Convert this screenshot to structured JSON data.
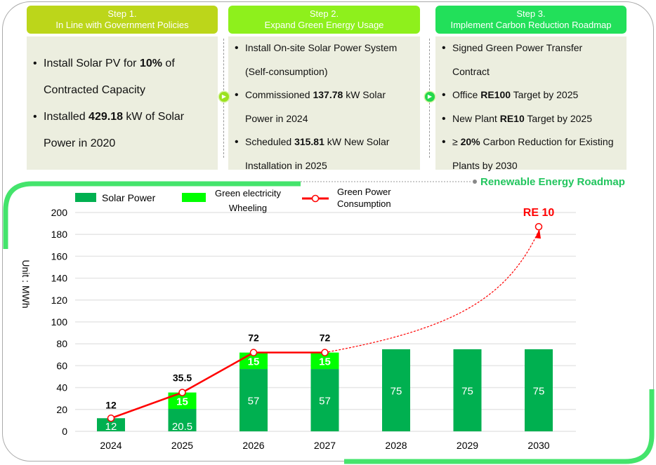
{
  "steps": [
    {
      "title": "Step 1.",
      "subtitle": "In Line with Government Policies",
      "color": "#bcd61a",
      "items": [
        [
          "Install Solar PV for ",
          "10%",
          " of Contracted Capacity"
        ],
        [
          "Installed ",
          "429.18",
          " kW of Solar Power in 2020"
        ]
      ]
    },
    {
      "title": "Step 2.",
      "subtitle": "Expand Green Energy Usage",
      "color": "#8ef01c",
      "items": [
        [
          "Install On-site Solar Power System (Self-consumption)",
          "",
          ""
        ],
        [
          "Commissioned ",
          "137.78",
          " kW Solar Power in 2024"
        ],
        [
          "Scheduled ",
          "315.81",
          " kW New Solar Installation in 2025"
        ]
      ]
    },
    {
      "title": "Step 3.",
      "subtitle": "Implement  Carbon Reduction Roadmap",
      "color": "#22e05a",
      "items": [
        [
          "Signed Green Power Transfer Contract",
          "",
          ""
        ],
        [
          "Office ",
          "RE100",
          " Target by 2025"
        ],
        [
          "New Plant ",
          "RE10",
          " Target by 2025"
        ],
        [
          "≥ ",
          "20%",
          " Carbon Reduction for Existing Plants by 2030"
        ]
      ]
    }
  ],
  "roadmap_title": "Renewable Energy Roadmap",
  "chart_data": {
    "type": "bar",
    "ylabel": "Unit : MWh",
    "ylim": [
      0,
      200
    ],
    "yticks": [
      0,
      20,
      40,
      60,
      80,
      100,
      120,
      140,
      160,
      180,
      200
    ],
    "grid": true,
    "legend_position": "top",
    "categories": [
      "2024",
      "2025",
      "2026",
      "2027",
      "2028",
      "2029",
      "2030"
    ],
    "series": [
      {
        "name": "Solar Power",
        "type": "bar",
        "stacked": true,
        "color": "#00b050",
        "values": [
          12,
          20.5,
          57,
          57,
          75,
          75,
          75
        ],
        "labels": [
          "12",
          "20.5",
          "57",
          "57",
          "75",
          "75",
          "75"
        ]
      },
      {
        "name": "Green electricity Wheeling",
        "type": "bar",
        "stacked": true,
        "color": "#00ff00",
        "values": [
          0,
          15,
          15,
          15,
          0,
          0,
          0
        ],
        "labels": [
          "",
          "15",
          "15",
          "15",
          "",
          "",
          ""
        ]
      },
      {
        "name": "Green Power Consumption",
        "type": "line",
        "color": "#ff0000",
        "values": [
          12,
          35.5,
          72,
          72,
          null,
          null,
          null
        ],
        "labels": [
          "12",
          "35.5",
          "72",
          "72",
          "",
          "",
          ""
        ]
      }
    ],
    "target": {
      "label": "RE 10",
      "category": "2030",
      "value": 187,
      "color": "#ff0000"
    }
  }
}
